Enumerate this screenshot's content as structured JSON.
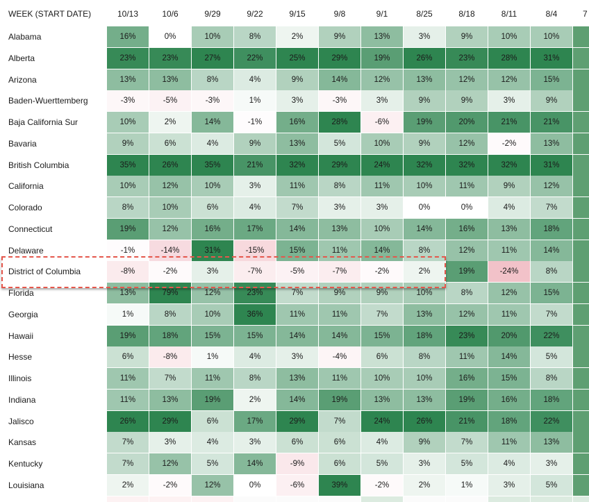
{
  "chart_data": {
    "type": "heatmap",
    "title": "",
    "row_header": "WEEK (START DATE)",
    "columns": [
      "10/13",
      "10/6",
      "9/29",
      "9/22",
      "9/15",
      "9/8",
      "9/1",
      "8/25",
      "8/18",
      "8/11",
      "8/4",
      "7"
    ],
    "rows": [
      {
        "label": "Alabama",
        "values": [
          16,
          0,
          10,
          8,
          2,
          9,
          13,
          3,
          9,
          10,
          10,
          null
        ]
      },
      {
        "label": "Alberta",
        "values": [
          23,
          23,
          27,
          22,
          25,
          29,
          19,
          26,
          23,
          28,
          31,
          null
        ]
      },
      {
        "label": "Arizona",
        "values": [
          13,
          13,
          8,
          4,
          9,
          14,
          12,
          13,
          12,
          12,
          15,
          null
        ]
      },
      {
        "label": "Baden-Wuerttemberg",
        "values": [
          -3,
          -5,
          -3,
          1,
          3,
          -3,
          3,
          9,
          9,
          3,
          9,
          null
        ]
      },
      {
        "label": "Baja California Sur",
        "values": [
          10,
          2,
          14,
          -1,
          16,
          28,
          -6,
          19,
          20,
          21,
          21,
          null
        ]
      },
      {
        "label": "Bavaria",
        "values": [
          9,
          6,
          4,
          9,
          13,
          5,
          10,
          9,
          12,
          -2,
          13,
          null
        ]
      },
      {
        "label": "British Columbia",
        "values": [
          35,
          26,
          35,
          21,
          32,
          29,
          24,
          32,
          32,
          32,
          31,
          null
        ]
      },
      {
        "label": "California",
        "values": [
          10,
          12,
          10,
          3,
          11,
          8,
          11,
          10,
          11,
          9,
          12,
          null
        ]
      },
      {
        "label": "Colorado",
        "values": [
          8,
          10,
          6,
          4,
          7,
          3,
          3,
          0,
          0,
          4,
          7,
          null
        ]
      },
      {
        "label": "Connecticut",
        "values": [
          19,
          12,
          16,
          17,
          14,
          13,
          10,
          14,
          16,
          13,
          18,
          null
        ]
      },
      {
        "label": "Delaware",
        "values": [
          -1,
          -14,
          31,
          -15,
          15,
          11,
          14,
          8,
          12,
          11,
          14,
          null
        ]
      },
      {
        "label": "District of Columbia",
        "values": [
          -8,
          -2,
          3,
          -7,
          -5,
          -7,
          -2,
          2,
          19,
          -24,
          8,
          null
        ]
      },
      {
        "label": "Florida",
        "values": [
          13,
          79,
          12,
          23,
          7,
          9,
          9,
          10,
          8,
          12,
          15,
          null
        ]
      },
      {
        "label": "Georgia",
        "values": [
          1,
          8,
          10,
          36,
          11,
          11,
          7,
          13,
          12,
          11,
          7,
          null
        ]
      },
      {
        "label": "Hawaii",
        "values": [
          19,
          18,
          15,
          15,
          14,
          14,
          15,
          18,
          23,
          20,
          22,
          null
        ]
      },
      {
        "label": "Hesse",
        "values": [
          6,
          -8,
          1,
          4,
          3,
          -4,
          6,
          8,
          11,
          14,
          5,
          null
        ]
      },
      {
        "label": "Illinois",
        "values": [
          11,
          7,
          11,
          8,
          13,
          11,
          10,
          10,
          16,
          15,
          8,
          null
        ]
      },
      {
        "label": "Indiana",
        "values": [
          11,
          13,
          19,
          2,
          14,
          19,
          13,
          13,
          19,
          16,
          18,
          null
        ]
      },
      {
        "label": "Jalisco",
        "values": [
          26,
          29,
          6,
          17,
          29,
          7,
          24,
          26,
          21,
          18,
          22,
          null
        ]
      },
      {
        "label": "Kansas",
        "values": [
          7,
          3,
          4,
          3,
          6,
          6,
          4,
          9,
          7,
          11,
          13,
          null
        ]
      },
      {
        "label": "Kentucky",
        "values": [
          7,
          12,
          5,
          14,
          -9,
          6,
          5,
          3,
          5,
          4,
          3,
          null
        ]
      },
      {
        "label": "Louisiana",
        "values": [
          2,
          -2,
          12,
          0,
          -6,
          39,
          -2,
          2,
          1,
          3,
          5,
          null
        ]
      }
    ],
    "unit": "%",
    "highlighted_row": "District of Columbia",
    "highlighted_columns": [
      "10/13",
      "10/6",
      "9/29",
      "9/22",
      "9/15",
      "9/8",
      "9/1",
      "8/25"
    ],
    "colors": {
      "positive": "#2e8550",
      "negative": "#f2c2c9",
      "zero": "#ffffff",
      "highlight": "#e5574c"
    }
  }
}
